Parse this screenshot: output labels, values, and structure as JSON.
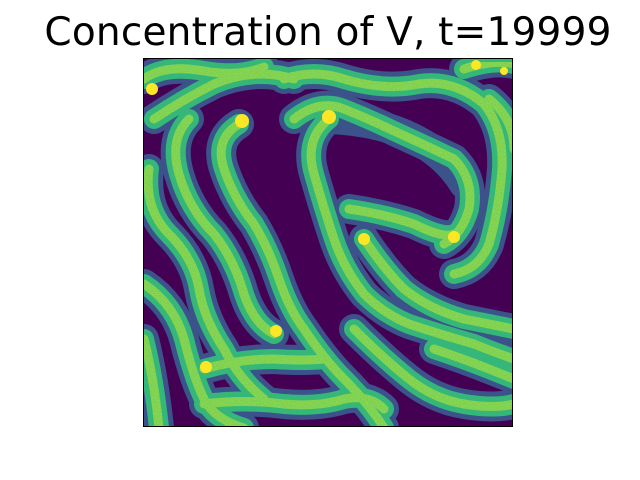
{
  "title": "Concentration of V, t=19999",
  "colormap": {
    "name": "viridis",
    "low": "#440154",
    "mid_low": "#3b528b",
    "mid": "#21918c",
    "mid_high": "#5ec962",
    "high": "#fde725"
  }
}
